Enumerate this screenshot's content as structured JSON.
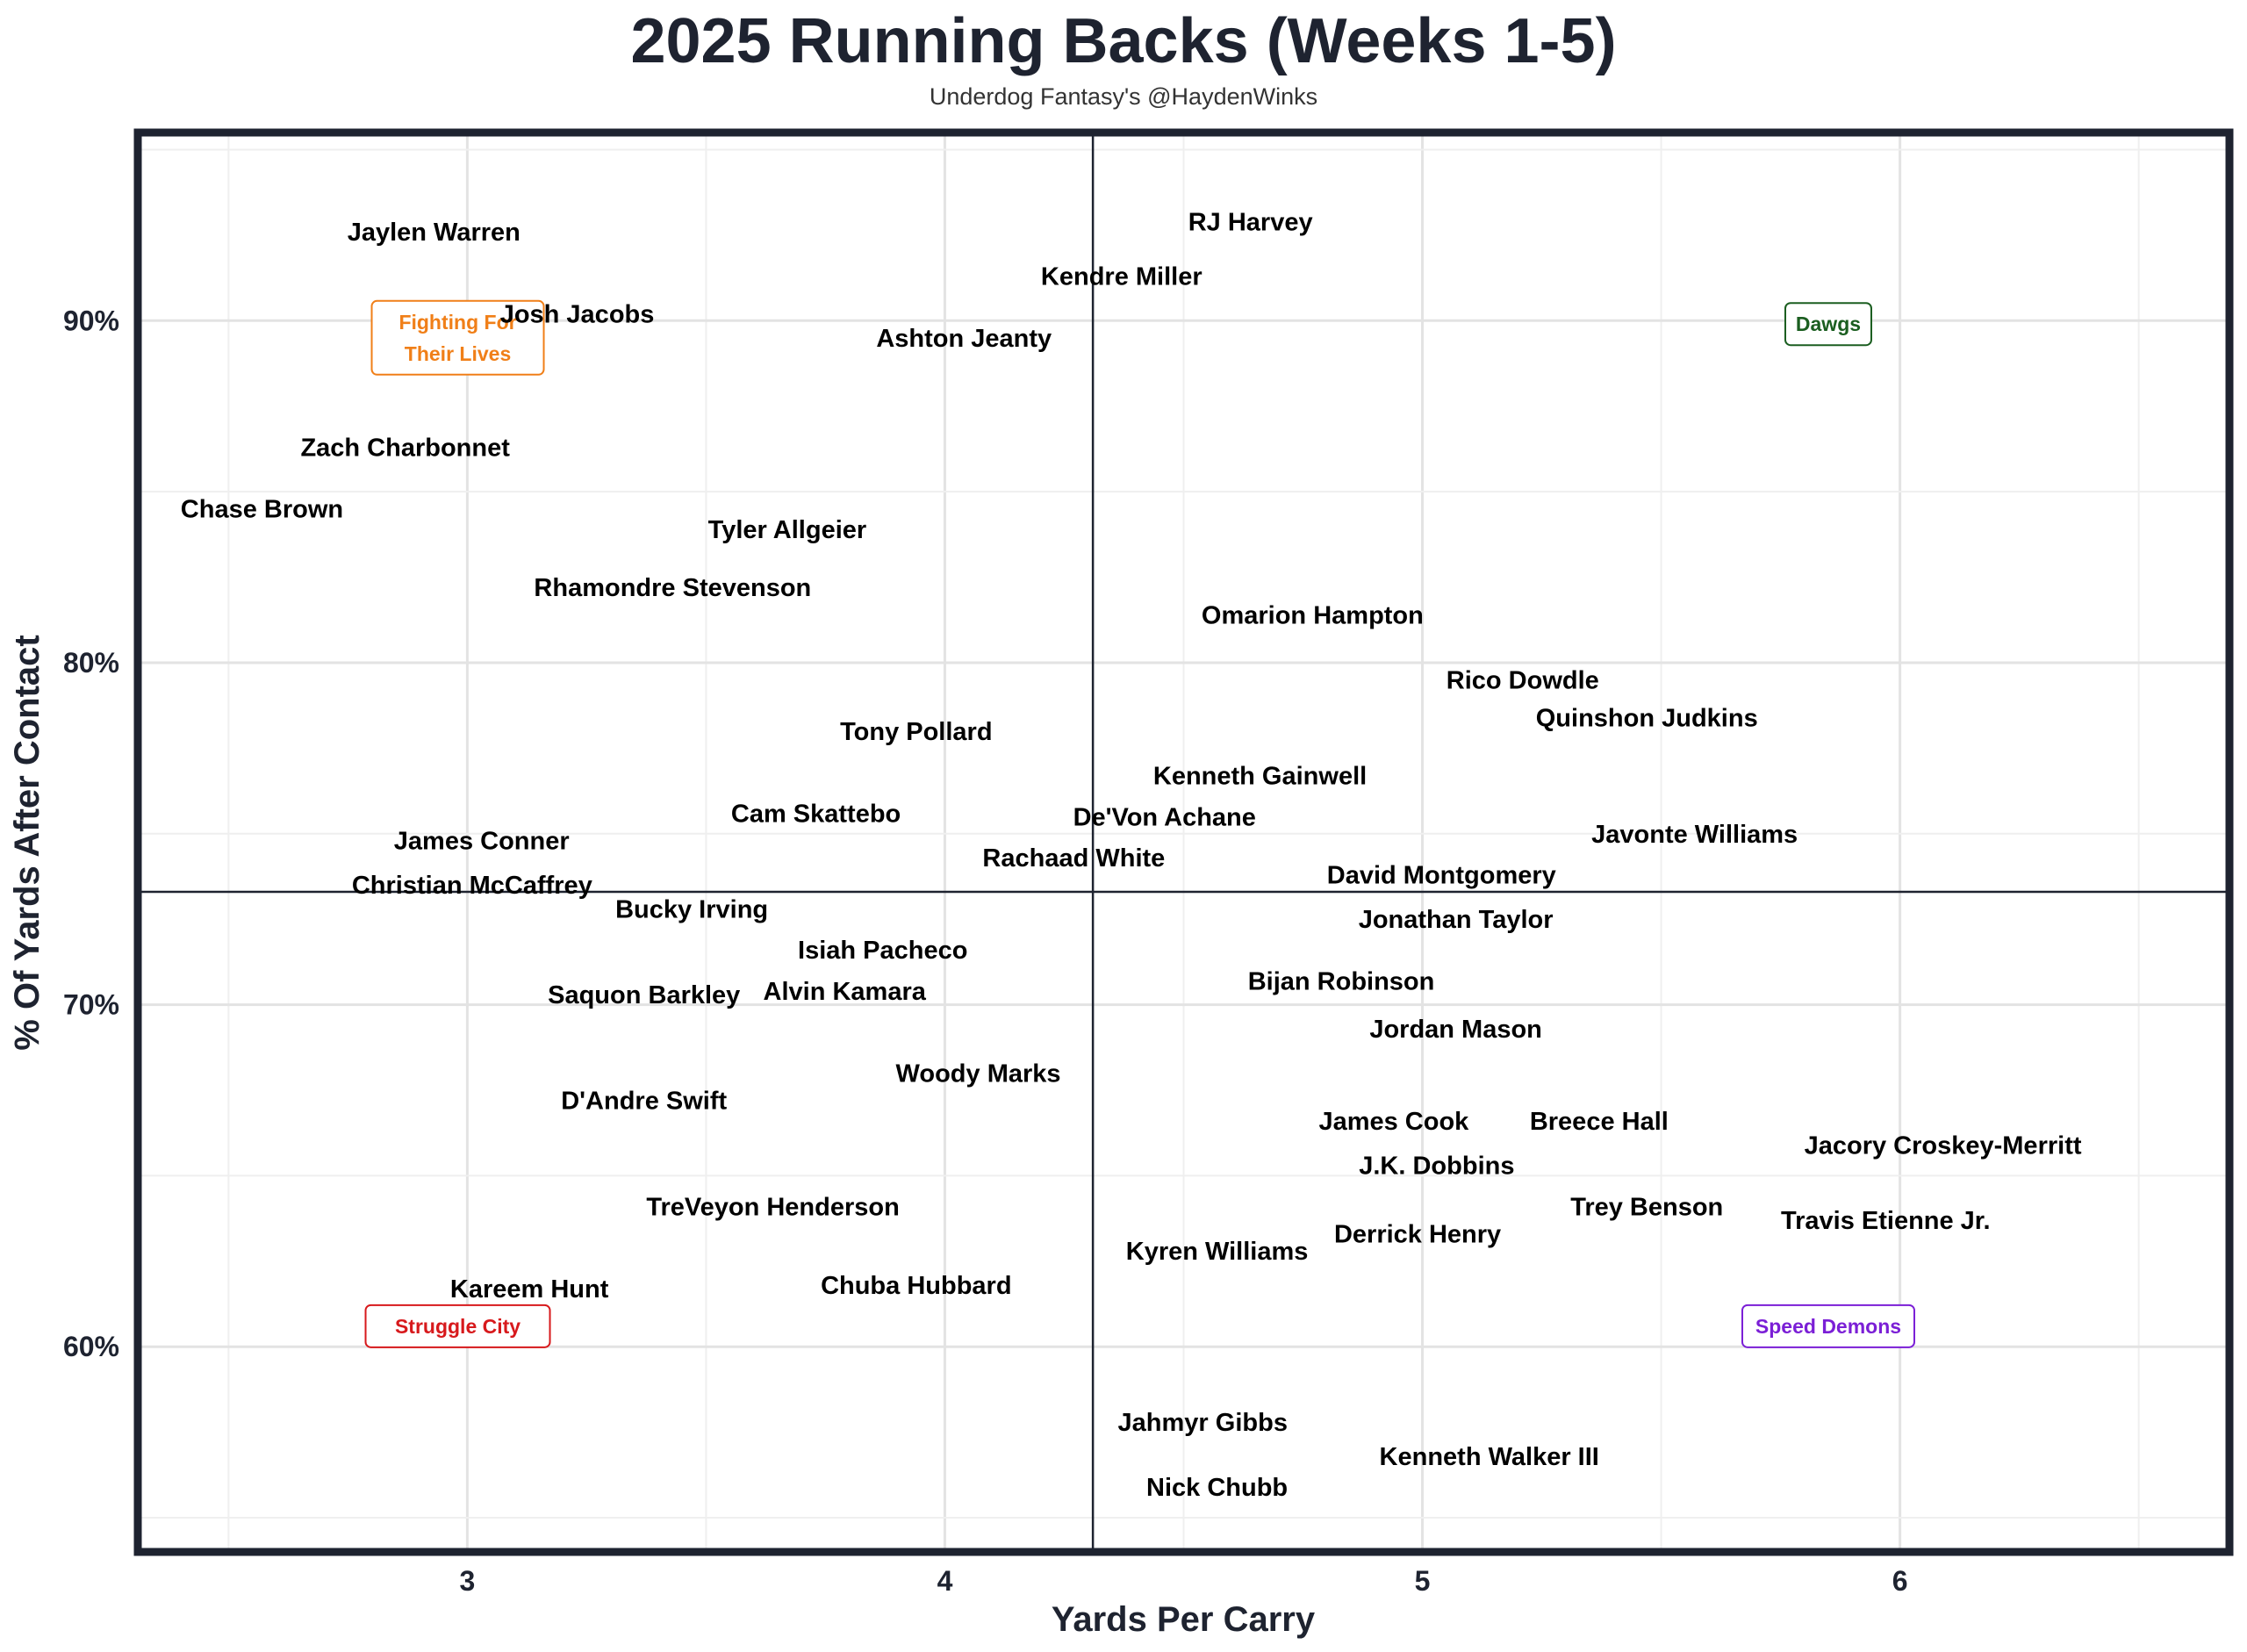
{
  "chart_data": {
    "type": "scatter",
    "title": "2025 Running Backs (Weeks 1-5)",
    "subtitle": "Underdog Fantasy's @HaydenWinks",
    "xlabel": "Yards Per Carry",
    "ylabel": "% Of Yards After Contact",
    "xlim": [
      2.31,
      6.69
    ],
    "ylim": [
      54.0,
      95.5
    ],
    "xticks": [
      3,
      4,
      5,
      6
    ],
    "xtick_labels": [
      "3",
      "4",
      "5",
      "6"
    ],
    "yticks": [
      60,
      70,
      80,
      90
    ],
    "ytick_labels": [
      "60%",
      "70%",
      "80%",
      "90%"
    ],
    "grid": true,
    "reference_lines": {
      "x": 4.31,
      "y": 73.3
    },
    "quadrant_labels": [
      {
        "text": [
          "Fighting For",
          "Their Lives"
        ],
        "x": 2.98,
        "y": 89.5,
        "color": "#f07f18"
      },
      {
        "text": [
          "Dawgs"
        ],
        "x": 5.85,
        "y": 89.9,
        "color": "#1b5e20"
      },
      {
        "text": [
          "Struggle City"
        ],
        "x": 2.98,
        "y": 60.6,
        "color": "#d7191c"
      },
      {
        "text": [
          "Speed Demons"
        ],
        "x": 5.85,
        "y": 60.6,
        "color": "#7b1fd6"
      }
    ],
    "points": [
      {
        "name": "Jaylen Warren",
        "x": 2.93,
        "y": 92.6
      },
      {
        "name": "RJ Harvey",
        "x": 4.64,
        "y": 92.9
      },
      {
        "name": "Kendre Miller",
        "x": 4.37,
        "y": 91.3
      },
      {
        "name": "Josh Jacobs",
        "x": 3.23,
        "y": 90.2
      },
      {
        "name": "Ashton Jeanty",
        "x": 4.04,
        "y": 89.5
      },
      {
        "name": "Zach Charbonnet",
        "x": 2.87,
        "y": 86.3
      },
      {
        "name": "Chase Brown",
        "x": 2.57,
        "y": 84.5
      },
      {
        "name": "Tyler Allgeier",
        "x": 3.67,
        "y": 83.9
      },
      {
        "name": "Rhamondre Stevenson",
        "x": 3.43,
        "y": 82.2
      },
      {
        "name": "Omarion Hampton",
        "x": 4.77,
        "y": 81.4
      },
      {
        "name": "Rico Dowdle",
        "x": 5.21,
        "y": 79.5
      },
      {
        "name": "Quinshon Judkins",
        "x": 5.47,
        "y": 78.4
      },
      {
        "name": "Tony Pollard",
        "x": 3.94,
        "y": 78.0
      },
      {
        "name": "Kenneth Gainwell",
        "x": 4.66,
        "y": 76.7
      },
      {
        "name": "Cam Skattebo",
        "x": 3.73,
        "y": 75.6
      },
      {
        "name": "De'Von Achane",
        "x": 4.46,
        "y": 75.5
      },
      {
        "name": "Javonte Williams",
        "x": 5.57,
        "y": 75.0
      },
      {
        "name": "James Conner",
        "x": 3.03,
        "y": 74.8
      },
      {
        "name": "Rachaad White",
        "x": 4.27,
        "y": 74.3
      },
      {
        "name": "David Montgomery",
        "x": 5.04,
        "y": 73.8
      },
      {
        "name": "Christian McCaffrey",
        "x": 3.01,
        "y": 73.5
      },
      {
        "name": "Bucky Irving",
        "x": 3.47,
        "y": 72.8
      },
      {
        "name": "Jonathan Taylor",
        "x": 5.07,
        "y": 72.5
      },
      {
        "name": "Isiah Pacheco",
        "x": 3.87,
        "y": 71.6
      },
      {
        "name": "Bijan Robinson",
        "x": 4.83,
        "y": 70.7
      },
      {
        "name": "Saquon Barkley",
        "x": 3.37,
        "y": 70.3
      },
      {
        "name": "Alvin Kamara",
        "x": 3.79,
        "y": 70.4
      },
      {
        "name": "Jordan Mason",
        "x": 5.07,
        "y": 69.3
      },
      {
        "name": "Woody Marks",
        "x": 4.07,
        "y": 68.0
      },
      {
        "name": "D'Andre Swift",
        "x": 3.37,
        "y": 67.2
      },
      {
        "name": "James Cook",
        "x": 4.94,
        "y": 66.6
      },
      {
        "name": "Breece Hall",
        "x": 5.37,
        "y": 66.6
      },
      {
        "name": "Jacory Croskey-Merritt",
        "x": 6.09,
        "y": 65.9
      },
      {
        "name": "J.K. Dobbins",
        "x": 5.03,
        "y": 65.3
      },
      {
        "name": "Trey Benson",
        "x": 5.47,
        "y": 64.1
      },
      {
        "name": "Travis Etienne Jr.",
        "x": 5.97,
        "y": 63.7
      },
      {
        "name": "TreVeyon Henderson",
        "x": 3.64,
        "y": 64.1
      },
      {
        "name": "Derrick Henry",
        "x": 4.99,
        "y": 63.3
      },
      {
        "name": "Kyren Williams",
        "x": 4.57,
        "y": 62.8
      },
      {
        "name": "Kareem Hunt",
        "x": 3.13,
        "y": 61.7
      },
      {
        "name": "Chuba Hubbard",
        "x": 3.94,
        "y": 61.8
      },
      {
        "name": "Jahmyr Gibbs",
        "x": 4.54,
        "y": 57.8
      },
      {
        "name": "Kenneth Walker III",
        "x": 5.14,
        "y": 56.8
      },
      {
        "name": "Nick Chubb",
        "x": 4.57,
        "y": 55.9
      }
    ]
  }
}
